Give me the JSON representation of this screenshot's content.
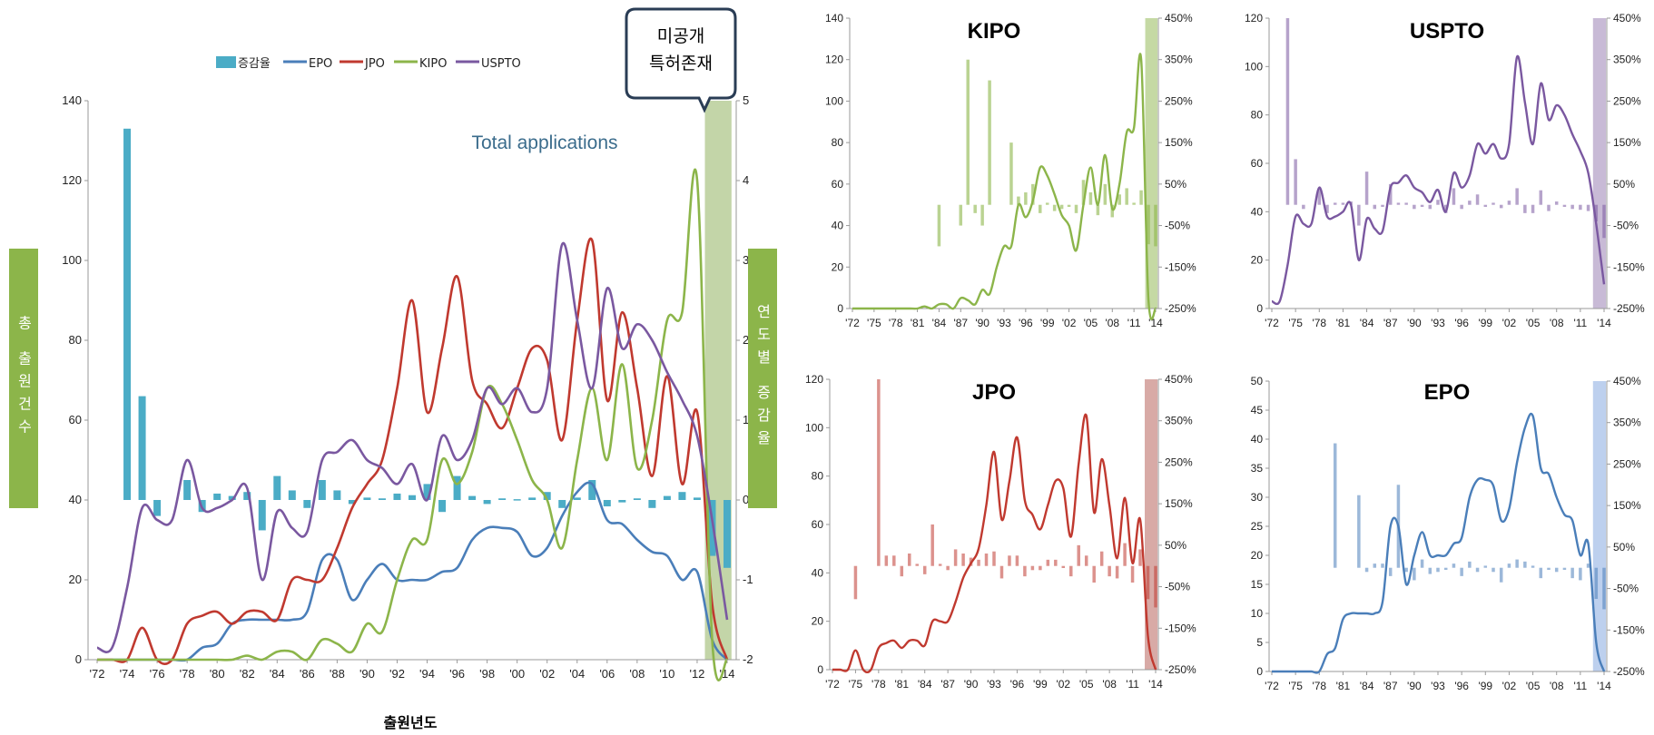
{
  "colors": {
    "EPO": "#4a7eb9",
    "JPO": "#c0392f",
    "KIPO": "#8cb54a",
    "USPTO": "#7a58a0",
    "bar_main": "#4bacc6",
    "side_label_bg": "#8cb54a",
    "shade_main": "#c3d5a8"
  },
  "main": {
    "legend": [
      "증감율",
      "EPO",
      "JPO",
      "KIPO",
      "USPTO"
    ],
    "callout": [
      "미공개",
      "특허존재"
    ],
    "total_label": "Total applications",
    "left_axis_label": "총 출원건수",
    "right_axis_label": "연도별 증감율",
    "x_axis_title": "출원년도"
  },
  "small_titles": {
    "KIPO": "KIPO",
    "USPTO": "USPTO",
    "JPO": "JPO",
    "EPO": "EPO"
  },
  "chart_data": [
    {
      "type": "line",
      "title": "Total applications",
      "xlabel": "출원년도",
      "ylabel": "총 출원건수",
      "y2label": "연도별 증감율",
      "x": [
        1972,
        1973,
        1974,
        1975,
        1976,
        1977,
        1978,
        1979,
        1980,
        1981,
        1982,
        1983,
        1984,
        1985,
        1986,
        1987,
        1988,
        1989,
        1990,
        1991,
        1992,
        1993,
        1994,
        1995,
        1996,
        1997,
        1998,
        1999,
        2000,
        2001,
        2002,
        2003,
        2004,
        2005,
        2006,
        2007,
        2008,
        2009,
        2010,
        2011,
        2012,
        2013,
        2014
      ],
      "xticks": [
        "'72",
        "'74",
        "'76",
        "'78",
        "'80",
        "'82",
        "'84",
        "'86",
        "'88",
        "'90",
        "'92",
        "'94",
        "'96",
        "'98",
        "'00",
        "'02",
        "'04",
        "'06",
        "'08",
        "'10",
        "'12",
        "'14"
      ],
      "ylim": [
        0,
        140
      ],
      "yticks": [
        0,
        20,
        40,
        60,
        80,
        100,
        120,
        140
      ],
      "y2lim": [
        -2,
        5
      ],
      "y2ticks": [
        -2,
        -1,
        0,
        1,
        2,
        3,
        4,
        5
      ],
      "shaded_years": [
        2013,
        2014
      ],
      "series": [
        {
          "name": "EPO",
          "values": [
            0,
            0,
            0,
            0,
            0,
            0,
            0,
            3,
            4,
            9,
            10,
            10,
            10,
            10,
            12,
            25,
            25,
            15,
            20,
            24,
            20,
            20,
            20,
            22,
            23,
            30,
            33,
            33,
            32,
            26,
            28,
            36,
            42,
            44,
            35,
            34,
            30,
            27,
            26,
            20,
            22,
            5,
            0
          ]
        },
        {
          "name": "JPO",
          "values": [
            0,
            0,
            0,
            8,
            0,
            0,
            9,
            11,
            12,
            9,
            12,
            12,
            10,
            20,
            20,
            20,
            28,
            38,
            44,
            50,
            68,
            90,
            62,
            78,
            96,
            70,
            64,
            58,
            68,
            78,
            75,
            55,
            85,
            105,
            65,
            87,
            68,
            46,
            71,
            44,
            62,
            14,
            0
          ]
        },
        {
          "name": "KIPO",
          "values": [
            0,
            0,
            0,
            0,
            0,
            0,
            0,
            0,
            0,
            0,
            1,
            0,
            2,
            2,
            0,
            5,
            4,
            2,
            9,
            7,
            20,
            30,
            30,
            50,
            44,
            52,
            68,
            64,
            55,
            45,
            40,
            28,
            50,
            68,
            50,
            74,
            48,
            60,
            85,
            87,
            120,
            5,
            0
          ]
        },
        {
          "name": "USPTO",
          "values": [
            3,
            3,
            18,
            38,
            35,
            35,
            50,
            38,
            38,
            40,
            43,
            20,
            37,
            33,
            32,
            50,
            52,
            55,
            50,
            48,
            44,
            49,
            40,
            56,
            50,
            55,
            68,
            64,
            68,
            62,
            68,
            104,
            85,
            68,
            93,
            78,
            84,
            80,
            72,
            65,
            56,
            35,
            10
          ]
        },
        {
          "name": "증감율",
          "kind": "bar",
          "axis": "y2",
          "values": [
            null,
            null,
            4.65,
            1.3,
            -0.2,
            null,
            0.25,
            -0.15,
            0.08,
            0.05,
            0.1,
            -0.38,
            0.3,
            0.12,
            -0.1,
            0.25,
            0.12,
            -0.05,
            0.03,
            0.02,
            0.08,
            0.06,
            0.2,
            -0.15,
            0.3,
            0.05,
            -0.05,
            0.02,
            0.01,
            0.03,
            0.1,
            -0.1,
            0.03,
            0.25,
            -0.08,
            -0.03,
            0.02,
            -0.1,
            0.05,
            0.1,
            0.03,
            -0.7,
            -0.85
          ]
        }
      ]
    },
    {
      "type": "line",
      "title": "KIPO",
      "x": [
        1972,
        1973,
        1974,
        1975,
        1976,
        1977,
        1978,
        1979,
        1980,
        1981,
        1982,
        1983,
        1984,
        1985,
        1986,
        1987,
        1988,
        1989,
        1990,
        1991,
        1992,
        1993,
        1994,
        1995,
        1996,
        1997,
        1998,
        1999,
        2000,
        2001,
        2002,
        2003,
        2004,
        2005,
        2006,
        2007,
        2008,
        2009,
        2010,
        2011,
        2012,
        2013,
        2014
      ],
      "xticks": [
        "'72",
        "'75",
        "'78",
        "'81",
        "'84",
        "'87",
        "'90",
        "'93",
        "'96",
        "'99",
        "'02",
        "'05",
        "'08",
        "'11",
        "'14"
      ],
      "ylim": [
        0,
        140
      ],
      "yticks": [
        0,
        20,
        40,
        60,
        80,
        100,
        120,
        140
      ],
      "y2lim": [
        "-250%",
        "450%"
      ],
      "y2ticks": [
        "-250%",
        "-150%",
        "-50%",
        "50%",
        "150%",
        "250%",
        "350%",
        "450%"
      ],
      "shaded_years": [
        2013,
        2014
      ],
      "series": [
        {
          "name": "KIPO",
          "values": [
            0,
            0,
            0,
            0,
            0,
            0,
            0,
            0,
            0,
            0,
            1,
            0,
            2,
            2,
            0,
            5,
            4,
            2,
            9,
            7,
            20,
            30,
            30,
            50,
            44,
            52,
            68,
            64,
            55,
            45,
            40,
            28,
            50,
            68,
            50,
            74,
            48,
            60,
            85,
            87,
            120,
            5,
            0
          ]
        },
        {
          "name": "증감율",
          "kind": "bar",
          "axis": "y2",
          "values": [
            null,
            null,
            null,
            null,
            null,
            null,
            null,
            null,
            null,
            null,
            null,
            null,
            -100,
            null,
            null,
            -50,
            350,
            -20,
            -50,
            300,
            null,
            null,
            150,
            20,
            30,
            50,
            -20,
            5,
            -15,
            -10,
            -5,
            -20,
            60,
            30,
            -25,
            50,
            -30,
            25,
            40,
            5,
            35,
            -95,
            -100
          ]
        }
      ]
    },
    {
      "type": "line",
      "title": "USPTO",
      "x": [
        1972,
        1973,
        1974,
        1975,
        1976,
        1977,
        1978,
        1979,
        1980,
        1981,
        1982,
        1983,
        1984,
        1985,
        1986,
        1987,
        1988,
        1989,
        1990,
        1991,
        1992,
        1993,
        1994,
        1995,
        1996,
        1997,
        1998,
        1999,
        2000,
        2001,
        2002,
        2003,
        2004,
        2005,
        2006,
        2007,
        2008,
        2009,
        2010,
        2011,
        2012,
        2013,
        2014
      ],
      "xticks": [
        "'72",
        "'75",
        "'78",
        "'81",
        "'84",
        "'87",
        "'90",
        "'93",
        "'96",
        "'99",
        "'02",
        "'05",
        "'08",
        "'11",
        "'14"
      ],
      "ylim": [
        0,
        120
      ],
      "yticks": [
        0,
        20,
        40,
        60,
        80,
        100,
        120
      ],
      "y2lim": [
        "-250%",
        "450%"
      ],
      "y2ticks": [
        "-250%",
        "-150%",
        "-50%",
        "50%",
        "150%",
        "250%",
        "350%",
        "450%"
      ],
      "shaded_years": [
        2013,
        2014
      ],
      "series": [
        {
          "name": "USPTO",
          "values": [
            3,
            3,
            18,
            38,
            35,
            35,
            50,
            38,
            38,
            40,
            43,
            20,
            37,
            33,
            32,
            50,
            52,
            55,
            50,
            48,
            44,
            49,
            40,
            56,
            50,
            55,
            68,
            64,
            68,
            62,
            68,
            104,
            85,
            68,
            93,
            78,
            84,
            80,
            72,
            65,
            56,
            35,
            10
          ]
        },
        {
          "name": "증감율",
          "kind": "bar",
          "axis": "y2",
          "values": [
            null,
            null,
            450,
            110,
            -10,
            null,
            40,
            -20,
            5,
            5,
            8,
            -50,
            80,
            -10,
            -5,
            50,
            5,
            5,
            -10,
            -5,
            -10,
            12,
            -20,
            40,
            -10,
            10,
            25,
            -5,
            5,
            -8,
            10,
            40,
            -20,
            -20,
            35,
            -15,
            8,
            -5,
            -10,
            -12,
            -15,
            -40,
            -80
          ]
        }
      ]
    },
    {
      "type": "line",
      "title": "JPO",
      "x": [
        1972,
        1973,
        1974,
        1975,
        1976,
        1977,
        1978,
        1979,
        1980,
        1981,
        1982,
        1983,
        1984,
        1985,
        1986,
        1987,
        1988,
        1989,
        1990,
        1991,
        1992,
        1993,
        1994,
        1995,
        1996,
        1997,
        1998,
        1999,
        2000,
        2001,
        2002,
        2003,
        2004,
        2005,
        2006,
        2007,
        2008,
        2009,
        2010,
        2011,
        2012,
        2013,
        2014
      ],
      "xticks": [
        "'72",
        "'75",
        "'78",
        "'81",
        "'84",
        "'87",
        "'90",
        "'93",
        "'96",
        "'99",
        "'02",
        "'05",
        "'08",
        "'11",
        "'14"
      ],
      "ylim": [
        0,
        120
      ],
      "yticks": [
        0,
        20,
        40,
        60,
        80,
        100,
        120
      ],
      "y2lim": [
        "-250%",
        "450%"
      ],
      "y2ticks": [
        "-250%",
        "-150%",
        "-50%",
        "50%",
        "150%",
        "250%",
        "350%",
        "450%"
      ],
      "shaded_years": [
        2013,
        2014
      ],
      "series": [
        {
          "name": "JPO",
          "values": [
            0,
            0,
            0,
            8,
            0,
            0,
            9,
            11,
            12,
            9,
            12,
            12,
            10,
            20,
            20,
            20,
            28,
            38,
            44,
            50,
            68,
            90,
            62,
            78,
            96,
            70,
            64,
            58,
            68,
            78,
            75,
            55,
            85,
            105,
            65,
            87,
            68,
            46,
            71,
            44,
            62,
            14,
            0
          ]
        },
        {
          "name": "증감율",
          "kind": "bar",
          "axis": "y2",
          "values": [
            null,
            null,
            null,
            -80,
            null,
            null,
            450,
            25,
            25,
            -25,
            30,
            5,
            -20,
            100,
            5,
            -10,
            40,
            30,
            20,
            15,
            30,
            35,
            -30,
            25,
            25,
            -25,
            -10,
            -10,
            15,
            15,
            -5,
            -25,
            50,
            25,
            -40,
            35,
            -25,
            -30,
            55,
            -40,
            40,
            -80,
            -100
          ]
        }
      ]
    },
    {
      "type": "line",
      "title": "EPO",
      "x": [
        1972,
        1973,
        1974,
        1975,
        1976,
        1977,
        1978,
        1979,
        1980,
        1981,
        1982,
        1983,
        1984,
        1985,
        1986,
        1987,
        1988,
        1989,
        1990,
        1991,
        1992,
        1993,
        1994,
        1995,
        1996,
        1997,
        1998,
        1999,
        2000,
        2001,
        2002,
        2003,
        2004,
        2005,
        2006,
        2007,
        2008,
        2009,
        2010,
        2011,
        2012,
        2013,
        2014
      ],
      "xticks": [
        "'72",
        "'75",
        "'78",
        "'81",
        "'84",
        "'87",
        "'90",
        "'93",
        "'96",
        "'99",
        "'02",
        "'05",
        "'08",
        "'11",
        "'14"
      ],
      "ylim": [
        0,
        50
      ],
      "yticks": [
        0,
        5,
        10,
        15,
        20,
        25,
        30,
        35,
        40,
        45,
        50
      ],
      "y2lim": [
        "-250%",
        "450%"
      ],
      "y2ticks": [
        "-250%",
        "-150%",
        "-50%",
        "50%",
        "150%",
        "250%",
        "350%",
        "450%"
      ],
      "shaded_years": [
        2013,
        2014
      ],
      "series": [
        {
          "name": "EPO",
          "values": [
            0,
            0,
            0,
            0,
            0,
            0,
            0,
            3,
            4,
            9,
            10,
            10,
            10,
            10,
            12,
            25,
            25,
            15,
            20,
            24,
            20,
            20,
            20,
            22,
            23,
            30,
            33,
            33,
            32,
            26,
            28,
            36,
            42,
            44,
            35,
            34,
            30,
            27,
            26,
            20,
            22,
            5,
            0
          ]
        },
        {
          "name": "증감율",
          "kind": "bar",
          "axis": "y2",
          "values": [
            null,
            null,
            null,
            null,
            null,
            null,
            null,
            null,
            300,
            null,
            null,
            175,
            -10,
            10,
            10,
            -20,
            200,
            -10,
            -30,
            20,
            -15,
            -10,
            -5,
            10,
            -20,
            15,
            -10,
            5,
            -10,
            -35,
            10,
            20,
            15,
            5,
            -25,
            -5,
            -10,
            -5,
            -25,
            -30,
            10,
            -75,
            -100
          ]
        }
      ]
    }
  ]
}
